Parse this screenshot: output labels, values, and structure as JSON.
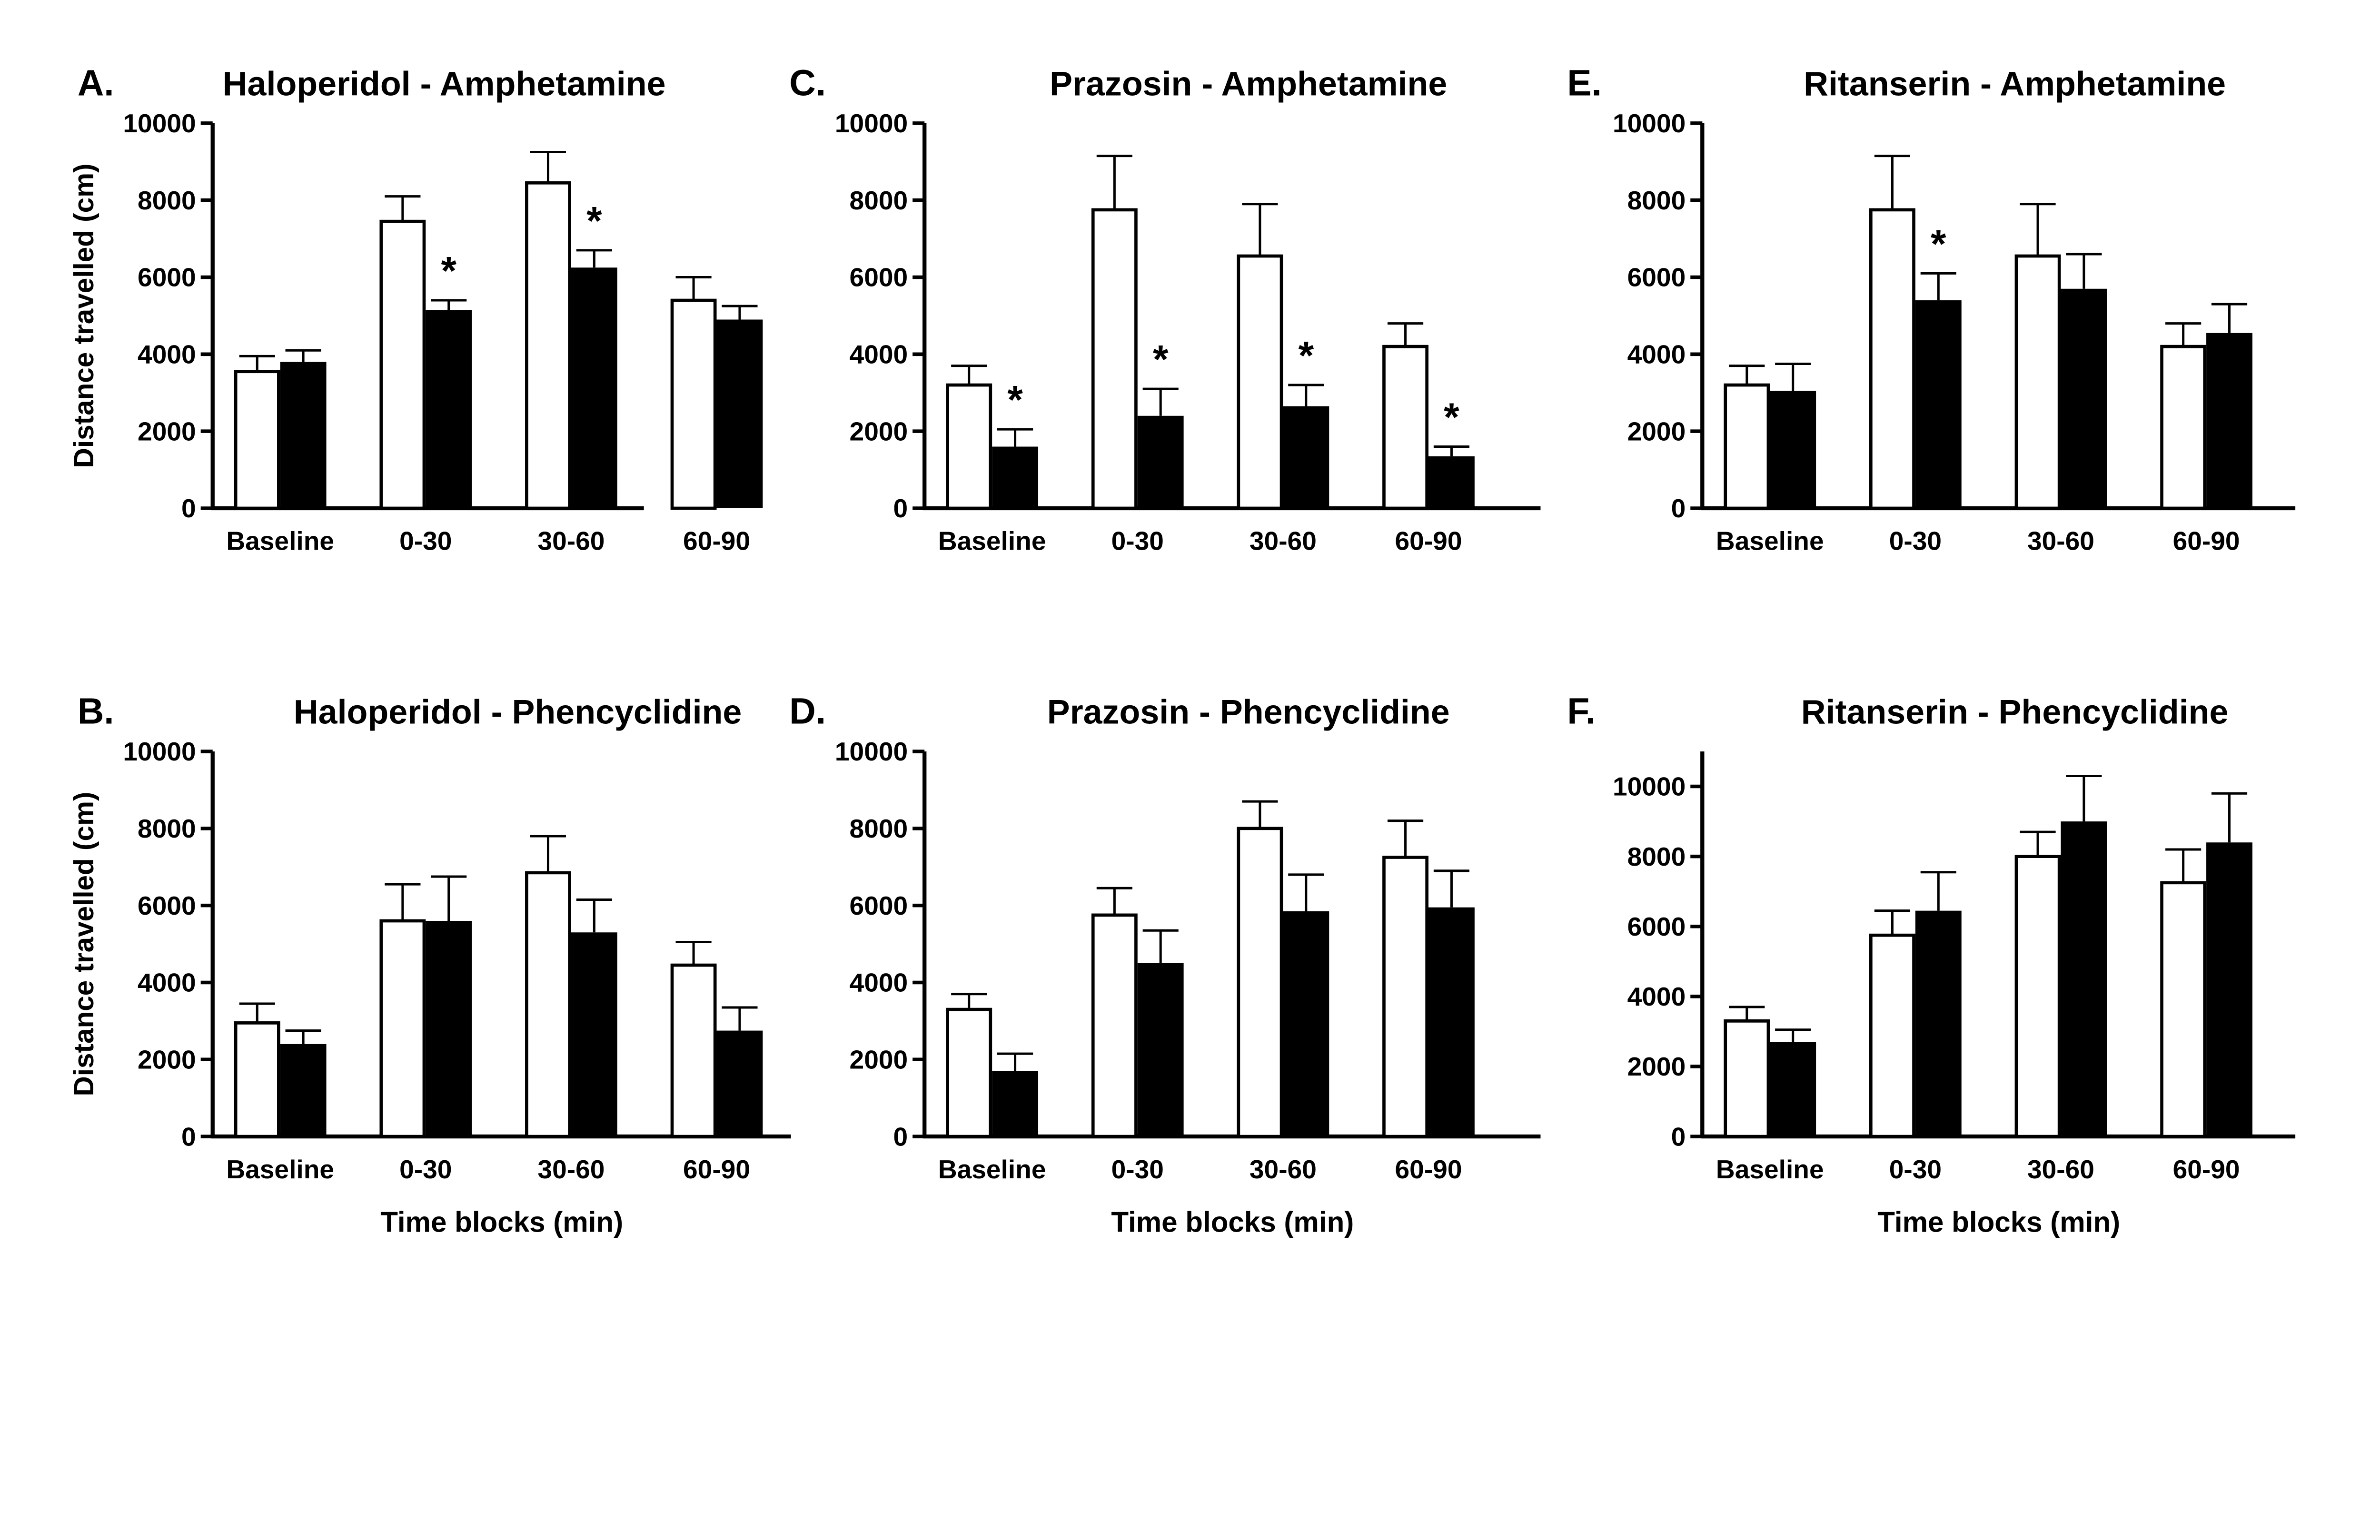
{
  "chart_data": [
    {
      "type": "bar",
      "panel": "A.",
      "title": "Haloperidol - Amphetamine",
      "ylabel": "Distance travelled (cm)",
      "xlabel": "",
      "categories": [
        "Baseline",
        "0-30",
        "30-60",
        "60-90"
      ],
      "ylim": [
        0,
        10000
      ],
      "yticks": [
        0,
        2000,
        4000,
        6000,
        8000,
        10000
      ],
      "series": [
        {
          "fill": "#ffffff",
          "values": [
            3550,
            7450,
            8450,
            5400
          ],
          "errors": [
            400,
            650,
            800,
            600
          ],
          "significant": [
            false,
            false,
            false,
            false
          ]
        },
        {
          "fill": "#000000",
          "values": [
            3800,
            5150,
            6250,
            4900
          ],
          "errors": [
            300,
            250,
            450,
            350
          ],
          "significant": [
            false,
            true,
            true,
            false
          ]
        }
      ]
    },
    {
      "type": "bar",
      "panel": "C.",
      "title": "Prazosin - Amphetamine",
      "ylabel": "",
      "xlabel": "",
      "categories": [
        "Baseline",
        "0-30",
        "30-60",
        "60-90"
      ],
      "ylim": [
        0,
        10000
      ],
      "yticks": [
        0,
        2000,
        4000,
        6000,
        8000,
        10000
      ],
      "series": [
        {
          "fill": "#ffffff",
          "values": [
            3200,
            7750,
            6550,
            4200
          ],
          "errors": [
            500,
            1400,
            1350,
            600
          ],
          "significant": [
            false,
            false,
            false,
            false
          ]
        },
        {
          "fill": "#000000",
          "values": [
            1600,
            2400,
            2650,
            1350
          ],
          "errors": [
            450,
            700,
            550,
            250
          ],
          "significant": [
            true,
            true,
            true,
            true
          ]
        }
      ]
    },
    {
      "type": "bar",
      "panel": "E.",
      "title": "Ritanserin - Amphetamine",
      "ylabel": "",
      "xlabel": "",
      "categories": [
        "Baseline",
        "0-30",
        "30-60",
        "60-90"
      ],
      "ylim": [
        0,
        10000
      ],
      "yticks": [
        0,
        2000,
        4000,
        6000,
        8000,
        10000
      ],
      "series": [
        {
          "fill": "#ffffff",
          "values": [
            3200,
            7750,
            6550,
            4200
          ],
          "errors": [
            500,
            1400,
            1350,
            600
          ],
          "significant": [
            false,
            false,
            false,
            false
          ]
        },
        {
          "fill": "#000000",
          "values": [
            3050,
            5400,
            5700,
            4550
          ],
          "errors": [
            700,
            700,
            900,
            750
          ],
          "significant": [
            false,
            true,
            false,
            false
          ]
        }
      ]
    },
    {
      "type": "bar",
      "panel": "B.",
      "title": "Haloperidol - Phencyclidine",
      "ylabel": "Distance travelled (cm)",
      "xlabel": "Time blocks (min)",
      "categories": [
        "Baseline",
        "0-30",
        "30-60",
        "60-90"
      ],
      "ylim": [
        0,
        10000
      ],
      "yticks": [
        0,
        2000,
        4000,
        6000,
        8000,
        10000
      ],
      "series": [
        {
          "fill": "#ffffff",
          "values": [
            2950,
            5600,
            6850,
            4450
          ],
          "errors": [
            500,
            950,
            950,
            600
          ],
          "significant": [
            false,
            false,
            false,
            false
          ]
        },
        {
          "fill": "#000000",
          "values": [
            2400,
            5600,
            5300,
            2750
          ],
          "errors": [
            350,
            1150,
            850,
            600
          ],
          "significant": [
            false,
            false,
            false,
            false
          ]
        }
      ]
    },
    {
      "type": "bar",
      "panel": "D.",
      "title": "Prazosin - Phencyclidine",
      "ylabel": "",
      "xlabel": "Time blocks (min)",
      "categories": [
        "Baseline",
        "0-30",
        "30-60",
        "60-90"
      ],
      "ylim": [
        0,
        10000
      ],
      "yticks": [
        0,
        2000,
        4000,
        6000,
        8000,
        10000
      ],
      "series": [
        {
          "fill": "#ffffff",
          "values": [
            3300,
            5750,
            8000,
            7250
          ],
          "errors": [
            400,
            700,
            700,
            950
          ],
          "significant": [
            false,
            false,
            false,
            false
          ]
        },
        {
          "fill": "#000000",
          "values": [
            1700,
            4500,
            5850,
            5950
          ],
          "errors": [
            450,
            850,
            950,
            950
          ],
          "significant": [
            false,
            false,
            false,
            false
          ]
        }
      ]
    },
    {
      "type": "bar",
      "panel": "F.",
      "title": "Ritanserin - Phencyclidine",
      "ylabel": "",
      "xlabel": "Time blocks (min)",
      "categories": [
        "Baseline",
        "0-30",
        "30-60",
        "60-90"
      ],
      "ylim": [
        0,
        11000
      ],
      "yticks": [
        0,
        2000,
        4000,
        6000,
        8000,
        10000
      ],
      "series": [
        {
          "fill": "#ffffff",
          "values": [
            3300,
            5750,
            8000,
            7250
          ],
          "errors": [
            400,
            700,
            700,
            950
          ],
          "significant": [
            false,
            false,
            false,
            false
          ]
        },
        {
          "fill": "#000000",
          "values": [
            2700,
            6450,
            9000,
            8400
          ],
          "errors": [
            350,
            1100,
            1300,
            1400
          ],
          "significant": [
            false,
            false,
            false,
            false
          ]
        }
      ]
    }
  ],
  "significance_marker": "*"
}
